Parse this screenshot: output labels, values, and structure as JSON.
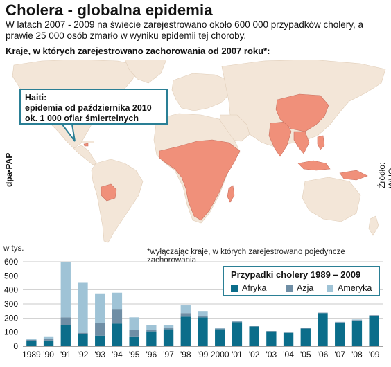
{
  "title": "Cholera - globalna epidemia",
  "subtitle": "W latach 2007 - 2009 na świecie zarejestrowano około 600 000 przypadków cholery, a prawie 25 000 osób zmarło w wyniku epidemii tej choroby.",
  "map": {
    "heading": "Kraje, w których zarejestrowano zachorowania od 2007 roku*:",
    "callout_title": "Haiti:",
    "callout_line1": "epidemia od października 2010",
    "callout_line2": "ok. 1 000 ofiar śmiertelnych",
    "footnote": "*wyłączając kraje, w których zarejestrowano pojedyncze zachorowania",
    "agency": "dpa•PAP",
    "source": "Źródło: WHO",
    "colors": {
      "ocean": "#ffffff",
      "land": "#f3e6d8",
      "affected": "#f0907a",
      "border": "#c87060"
    }
  },
  "chart_data": {
    "type": "bar",
    "stacked": true,
    "title": "Przypadki cholery 1989 – 2009",
    "ylabel": "w tys.",
    "ylim": [
      0,
      600
    ],
    "yticks": [
      "0",
      "100",
      "200",
      "300",
      "400",
      "500",
      "600"
    ],
    "grid": true,
    "legend_position": "top-right",
    "categories": [
      "1989",
      "'90",
      "'91",
      "'92",
      "'93",
      "'94",
      "'95",
      "'96",
      "'97",
      "'98",
      "'99",
      "2000",
      "'01",
      "'02",
      "'03",
      "'04",
      "'05",
      "'06",
      "'07",
      "'08",
      "'09"
    ],
    "series": [
      {
        "name": "Afryka",
        "color": "#0b6d8a",
        "values": [
          35,
          40,
          150,
          85,
          75,
          160,
          70,
          105,
          120,
          210,
          205,
          120,
          170,
          140,
          105,
          95,
          125,
          235,
          165,
          180,
          215
        ]
      },
      {
        "name": "Azja",
        "color": "#6f8ea5",
        "values": [
          10,
          10,
          55,
          10,
          90,
          105,
          45,
          10,
          10,
          25,
          10,
          5,
          5,
          2,
          3,
          2,
          3,
          3,
          5,
          5,
          5
        ]
      },
      {
        "name": "Ameryka",
        "color": "#9fc3d6",
        "values": [
          5,
          20,
          390,
          360,
          210,
          115,
          90,
          35,
          20,
          55,
          35,
          5,
          5,
          0,
          0,
          0,
          0,
          0,
          3,
          5,
          0
        ]
      }
    ]
  }
}
